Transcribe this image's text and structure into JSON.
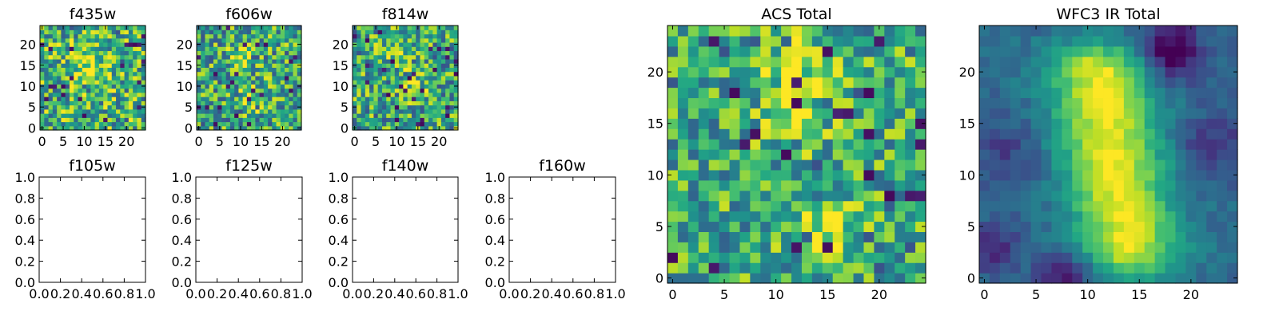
{
  "chart_data": [
    {
      "name": "f435w",
      "type": "heatmap",
      "title": "f435w",
      "xlim": [
        -0.5,
        24.5
      ],
      "ylim": [
        -0.5,
        24.5
      ],
      "xticks": [
        0,
        5,
        10,
        15,
        20
      ],
      "yticks": [
        0,
        5,
        10,
        15,
        20
      ],
      "grid": 25,
      "colormap": "viridis",
      "style": "noise",
      "seed": 11,
      "sigma": 3.2,
      "mean": 0.65,
      "spread": 0.35,
      "bright": [
        [
          10,
          15,
          0.18
        ],
        [
          13,
          12,
          0.1
        ]
      ]
    },
    {
      "name": "f606w",
      "type": "heatmap",
      "title": "f606w",
      "xlim": [
        -0.5,
        24.5
      ],
      "ylim": [
        -0.5,
        24.5
      ],
      "xticks": [
        0,
        5,
        10,
        15,
        20
      ],
      "yticks": [
        0,
        5,
        10,
        15,
        20
      ],
      "grid": 25,
      "colormap": "viridis",
      "style": "noise",
      "seed": 23,
      "sigma": 2.5,
      "mean": 0.6,
      "spread": 0.35,
      "bright": [
        [
          11,
          18,
          0.2
        ],
        [
          13,
          7,
          0.2
        ]
      ]
    },
    {
      "name": "f814w",
      "type": "heatmap",
      "title": "f814w",
      "xlim": [
        -0.5,
        24.5
      ],
      "ylim": [
        -0.5,
        24.5
      ],
      "xticks": [
        0,
        5,
        10,
        15,
        20
      ],
      "yticks": [
        0,
        5,
        10,
        15,
        20
      ],
      "grid": 25,
      "colormap": "viridis",
      "style": "noise",
      "seed": 37,
      "sigma": 2.3,
      "mean": 0.6,
      "spread": 0.35,
      "bright": [
        [
          9,
          18,
          0.2
        ],
        [
          14,
          10,
          0.22
        ]
      ]
    },
    {
      "name": "f105w",
      "type": "empty",
      "title": "f105w",
      "xlim": [
        0,
        1
      ],
      "ylim": [
        0,
        1
      ],
      "xticks": [
        "0.0",
        "0.2",
        "0.4",
        "0.6",
        "0.8",
        "1.0"
      ],
      "yticks": [
        "0.0",
        "0.2",
        "0.4",
        "0.6",
        "0.8",
        "1.0"
      ]
    },
    {
      "name": "f125w",
      "type": "empty",
      "title": "f125w",
      "xlim": [
        0,
        1
      ],
      "ylim": [
        0,
        1
      ],
      "xticks": [
        "0.0",
        "0.2",
        "0.4",
        "0.6",
        "0.8",
        "1.0"
      ],
      "yticks": [
        "0.0",
        "0.2",
        "0.4",
        "0.6",
        "0.8",
        "1.0"
      ]
    },
    {
      "name": "f140w",
      "type": "empty",
      "title": "f140w",
      "xlim": [
        0,
        1
      ],
      "ylim": [
        0,
        1
      ],
      "xticks": [
        "0.0",
        "0.2",
        "0.4",
        "0.6",
        "0.8",
        "1.0"
      ],
      "yticks": [
        "0.0",
        "0.2",
        "0.4",
        "0.6",
        "0.8",
        "1.0"
      ]
    },
    {
      "name": "f160w",
      "type": "empty",
      "title": "f160w",
      "xlim": [
        0,
        1
      ],
      "ylim": [
        0,
        1
      ],
      "xticks": [
        "0.0",
        "0.2",
        "0.4",
        "0.6",
        "0.8",
        "1.0"
      ],
      "yticks": [
        "0.0",
        "0.2",
        "0.4",
        "0.6",
        "0.8",
        "1.0"
      ]
    },
    {
      "name": "acs-total",
      "type": "heatmap",
      "title": "ACS Total",
      "xlim": [
        -0.5,
        24.5
      ],
      "ylim": [
        -0.5,
        24.5
      ],
      "xticks": [
        0,
        5,
        10,
        15,
        20
      ],
      "yticks": [
        0,
        5,
        10,
        15,
        20
      ],
      "grid": 25,
      "colormap": "viridis",
      "style": "noise",
      "seed": 53,
      "sigma": 2.3,
      "mean": 0.62,
      "spread": 0.3,
      "bright": [
        [
          12,
          20,
          0.25
        ],
        [
          12,
          15,
          0.15
        ],
        [
          15,
          5,
          0.25
        ]
      ]
    },
    {
      "name": "wfc3-ir-total",
      "type": "heatmap",
      "title": "WFC3 IR Total",
      "xlim": [
        -0.5,
        24.5
      ],
      "ylim": [
        -0.5,
        24.5
      ],
      "xticks": [
        0,
        5,
        10,
        15,
        20
      ],
      "yticks": [
        0,
        5,
        10,
        15,
        20
      ],
      "grid": 25,
      "colormap": "viridis",
      "style": "smooth",
      "seed": 71,
      "noise": 0.07,
      "baseline": 0.35,
      "ridge": {
        "x_top": 11,
        "x_bottom": 14,
        "y_top": 20,
        "y_bottom": 3,
        "peak": 0.62,
        "width": 3.4
      },
      "dark_patches": [
        [
          18,
          22,
          0.42,
          2.0
        ],
        [
          22,
          13,
          0.2,
          2.2
        ],
        [
          2,
          12,
          0.15,
          2.5
        ],
        [
          8,
          0,
          0.3,
          2.0
        ],
        [
          1,
          3,
          0.25,
          1.6
        ]
      ]
    }
  ]
}
